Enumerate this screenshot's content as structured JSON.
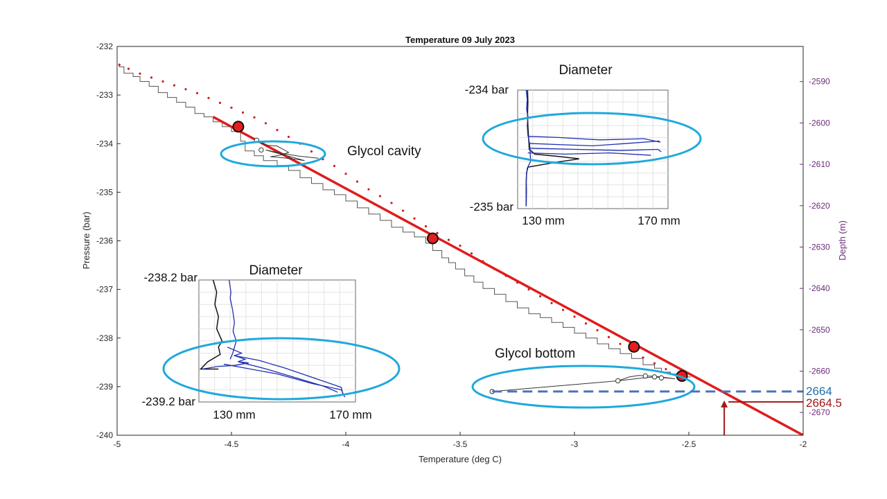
{
  "chart_data": {
    "type": "line",
    "title": "Temperature 09 July 2023",
    "xlabel": "Temperature (deg C)",
    "ylabel": "Pressure (bar)",
    "y2label": "Depth (m)",
    "xlim": [
      -5,
      -2
    ],
    "ylim": [
      -240,
      -232
    ],
    "y2lim": [
      -2675.5,
      -2581.5
    ],
    "x_ticks": [
      "-5",
      "-4.5",
      "-4",
      "-3.5",
      "-3",
      "-2.5",
      "-2"
    ],
    "y_ticks": [
      "-232",
      "-233",
      "-234",
      "-235",
      "-236",
      "-237",
      "-238",
      "-239",
      "-240"
    ],
    "y2_ticks": [
      "-2590",
      "-2600",
      "-2610",
      "-2620",
      "-2630",
      "-2640",
      "-2650",
      "-2660",
      "-2670"
    ],
    "colors": {
      "profile": "#555555",
      "dots": "#cc1e1e",
      "fit": "#e01b1b",
      "ellipse": "#1fa8dd",
      "dashed": "#4a72b8",
      "inset_blue": "#1f2fb0",
      "label_2664": "#1f6fa8",
      "label_2664_5": "#a01818"
    },
    "series": [
      {
        "type": "step",
        "x": [
          -4.99,
          -4.97,
          -4.93,
          -4.9,
          -4.86,
          -4.82,
          -4.78,
          -4.74,
          -4.7,
          -4.66,
          -4.62,
          -4.58,
          -4.54,
          -4.5,
          -4.46,
          -4.44,
          -4.4,
          -4.36,
          -4.3,
          -4.25,
          -4.2,
          -4.15,
          -4.1,
          -4.05,
          -4.0,
          -3.95,
          -3.9,
          -3.85,
          -3.8,
          -3.75,
          -3.7,
          -3.65,
          -3.62,
          -3.58,
          -3.55,
          -3.52,
          -3.48,
          -3.44,
          -3.4,
          -3.35,
          -3.3,
          -3.25,
          -3.2,
          -3.15,
          -3.1,
          -3.05,
          -3.0,
          -2.95,
          -2.9,
          -2.85,
          -2.8,
          -2.75,
          -2.7,
          -2.65,
          -2.62,
          -2.58,
          -2.55,
          -2.52,
          -2.49
        ],
        "y": [
          -232.35,
          -232.42,
          -232.55,
          -232.62,
          -232.72,
          -232.82,
          -232.95,
          -233.05,
          -233.15,
          -233.25,
          -233.38,
          -233.45,
          -233.55,
          -233.65,
          -233.75,
          -233.95,
          -234.15,
          -234.25,
          -234.35,
          -234.45,
          -234.55,
          -234.7,
          -234.82,
          -234.95,
          -235.05,
          -235.18,
          -235.32,
          -235.45,
          -235.58,
          -235.72,
          -235.82,
          -235.92,
          -236.05,
          -236.2,
          -236.35,
          -236.45,
          -236.58,
          -236.72,
          -236.85,
          -236.98,
          -237.1,
          -237.25,
          -237.38,
          -237.5,
          -237.58,
          -237.68,
          -237.78,
          -237.9,
          -238.0,
          -238.12,
          -238.22,
          -238.32,
          -238.42,
          -238.55,
          -238.62,
          -238.7,
          -238.74,
          -238.78,
          -238.8
        ]
      },
      {
        "type": "dotted",
        "x": [
          -4.99,
          -4.95,
          -4.9,
          -4.85,
          -4.8,
          -4.75,
          -4.7,
          -4.65,
          -4.6,
          -4.55,
          -4.5,
          -4.45,
          -4.4,
          -4.35,
          -4.3,
          -4.25,
          -4.2,
          -4.15,
          -4.1,
          -4.05,
          -4.0,
          -3.95,
          -3.9,
          -3.85,
          -3.8,
          -3.75,
          -3.7,
          -3.65,
          -3.6,
          -3.55,
          -3.5,
          -3.45,
          -3.4,
          -3.35,
          -3.3,
          -3.25,
          -3.2,
          -3.15,
          -3.1,
          -3.05,
          -3.0,
          -2.95,
          -2.9,
          -2.85,
          -2.8,
          -2.75,
          -2.7,
          -2.65,
          -2.6,
          -2.55
        ],
        "y": [
          -232.38,
          -232.46,
          -232.56,
          -232.64,
          -232.72,
          -232.8,
          -232.88,
          -232.96,
          -233.06,
          -233.16,
          -233.26,
          -233.36,
          -233.46,
          -233.58,
          -233.72,
          -233.86,
          -234.0,
          -234.16,
          -234.32,
          -234.46,
          -234.62,
          -234.78,
          -234.94,
          -235.08,
          -235.22,
          -235.38,
          -235.54,
          -235.7,
          -235.84,
          -235.98,
          -236.1,
          -236.26,
          -236.42,
          -236.58,
          -236.72,
          -236.86,
          -237.0,
          -237.14,
          -237.28,
          -237.42,
          -237.56,
          -237.7,
          -237.84,
          -237.98,
          -238.12,
          -238.26,
          -238.4,
          -238.52,
          -238.64,
          -238.76
        ]
      },
      {
        "type": "fit",
        "x": [
          -4.58,
          -2
        ],
        "y": [
          -233.45,
          -240.0
        ]
      },
      {
        "type": "markers",
        "x": [
          -4.47,
          -3.62,
          -2.74,
          -2.53
        ],
        "y": [
          -233.65,
          -235.95,
          -238.18,
          -238.78
        ]
      }
    ],
    "cavity_trace": {
      "x": [
        -4.39,
        -4.35,
        -4.3,
        -4.25,
        -4.28,
        -4.33,
        -4.3,
        -4.26,
        -4.22,
        -4.18,
        -4.35,
        -4.28,
        -4.2,
        -4.12
      ],
      "y": [
        -233.93,
        -234.03,
        -234.05,
        -234.18,
        -234.23,
        -234.27,
        -234.28,
        -234.3,
        -234.32,
        -234.35,
        -234.13,
        -234.2,
        -234.26,
        -234.3
      ]
    },
    "cavity_markers": {
      "x": [
        -4.39,
        -4.37
      ],
      "y": [
        -233.93,
        -234.13
      ]
    },
    "bottom_trace": {
      "x": [
        -3.36,
        -2.81,
        -2.7,
        -2.65,
        -2.6,
        -2.56,
        -2.62,
        -2.68,
        -2.72,
        -2.76,
        -2.81
      ],
      "y": [
        -239.1,
        -238.88,
        -238.82,
        -238.8,
        -238.82,
        -238.84,
        -238.8,
        -238.78,
        -238.77,
        -238.8,
        -238.88
      ]
    },
    "bottom_markers": {
      "x": [
        -3.36,
        -2.81,
        -2.69,
        -2.65,
        -2.62
      ],
      "y": [
        -239.1,
        -238.88,
        -238.78,
        -238.8,
        -238.82
      ]
    },
    "dashed_line": {
      "x": [
        -3.36,
        -2.0
      ],
      "y": [
        -239.1,
        -239.1
      ]
    },
    "depth_arrow": {
      "x": -2.345,
      "y_from": -240.0,
      "y_to": -239.1
    },
    "depth_pointer": {
      "y_from": -239.2,
      "y_to": -239.25
    },
    "annotations": {
      "glycol_cavity": "Glycol cavity",
      "glycol_bottom": "Glycol bottom",
      "depth_2664": "2664",
      "depth_2664_5": "2664.5"
    },
    "insets": [
      {
        "title": "Diameter",
        "top_label": "-234 bar",
        "bottom_label": "-235 bar",
        "x_left_label": "130 mm",
        "x_right_label": "170 mm",
        "xlim": [
          128,
          172
        ],
        "ylim": [
          -235,
          -234
        ],
        "black": {
          "x": [
            130.9,
            131.0,
            130.9,
            131.0,
            131.2,
            131.4,
            133.0,
            140.0,
            146.0,
            139.0,
            131.0,
            130.6,
            130.5,
            130.5
          ],
          "y": [
            -234.0,
            -234.1,
            -234.2,
            -234.3,
            -234.4,
            -234.5,
            -234.54,
            -234.56,
            -234.58,
            -234.61,
            -234.65,
            -234.7,
            -234.8,
            -234.98
          ]
        },
        "blue": [
          {
            "x": [
              130.5,
              130.8,
              130.6,
              131.0,
              130.8,
              131.0,
              131.5,
              131.8,
              130.8,
              130.5,
              130.6,
              130.5
            ],
            "y": [
              -234.0,
              -234.08,
              -234.16,
              -234.22,
              -234.3,
              -234.38,
              -234.45,
              -234.6,
              -234.66,
              -234.75,
              -234.85,
              -234.98
            ]
          },
          {
            "x": [
              131.2,
              140.0,
              150.0,
              160.0,
              169.5
            ],
            "y": [
              -234.45,
              -234.46,
              -234.47,
              -234.45,
              -234.43
            ]
          },
          {
            "x": [
              131.2,
              145.0,
              158.0,
              169.0,
              170.0
            ],
            "y": [
              -234.49,
              -234.5,
              -234.51,
              -234.5,
              -234.52
            ]
          },
          {
            "x": [
              131.0,
              142.0,
              155.0,
              167.0
            ],
            "y": [
              -234.53,
              -234.54,
              -234.53,
              -234.55
            ]
          },
          {
            "x": [
              131.0,
              140.0,
              152.0,
              165.0,
              169.8
            ],
            "y": [
              -234.39,
              -234.4,
              -234.42,
              -234.41,
              -234.44
            ]
          }
        ]
      },
      {
        "title": "Diameter",
        "top_label": "-238.2 bar",
        "bottom_label": "-239.2 bar",
        "x_left_label": "130 mm",
        "x_right_label": "170 mm",
        "xlim": [
          128,
          172
        ],
        "ylim": [
          -239.2,
          -238.2
        ],
        "black": {
          "x": [
            132.0,
            133.0,
            132.5,
            133.5,
            133.0,
            134.5,
            133.5,
            134.0,
            130.5,
            128.5,
            133.5
          ],
          "y": [
            -238.2,
            -238.3,
            -238.4,
            -238.5,
            -238.6,
            -238.7,
            -238.75,
            -238.81,
            -238.87,
            -238.93,
            -238.93
          ]
        },
        "blue": [
          {
            "x": [
              136.5,
              137.0,
              136.8,
              137.5,
              138.0,
              137.6,
              138.5,
              138.0,
              137.5,
              136.8
            ],
            "y": [
              -238.2,
              -238.3,
              -238.35,
              -238.45,
              -238.55,
              -238.62,
              -238.7,
              -238.75,
              -238.8,
              -238.85
            ]
          },
          {
            "x": [
              136.0,
              140.0,
              138.0,
              141.0,
              139.0,
              142.0,
              138.0,
              133.0,
              129.0
            ],
            "y": [
              -238.75,
              -238.8,
              -238.82,
              -238.85,
              -238.87,
              -238.88,
              -238.9,
              -238.91,
              -238.93
            ]
          },
          {
            "x": [
              138.0,
              145.0,
              152.0,
              160.0,
              168.0,
              168.5
            ],
            "y": [
              -238.82,
              -238.86,
              -238.92,
              -239.0,
              -239.08,
              -239.14
            ]
          },
          {
            "x": [
              139.0,
              147.0,
              155.0,
              163.0,
              167.0
            ],
            "y": [
              -238.87,
              -238.93,
              -239.0,
              -239.07,
              -239.12
            ]
          },
          {
            "x": [
              135.0,
              150.0,
              160.0,
              168.0,
              169.0
            ],
            "y": [
              -238.89,
              -238.97,
              -239.05,
              -239.1,
              -239.16
            ]
          }
        ]
      }
    ]
  }
}
